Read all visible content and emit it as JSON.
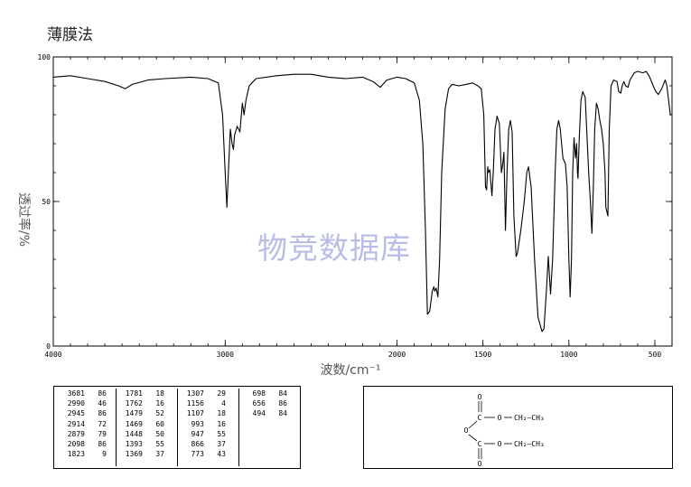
{
  "title": "薄膜法",
  "watermark": "物竞数据库",
  "chart_data": {
    "type": "line",
    "xlabel": "波数/cm⁻¹",
    "ylabel": "透过率/%",
    "xlim": [
      4000,
      400
    ],
    "ylim": [
      0,
      100
    ],
    "x_ticks": [
      4000,
      3000,
      2000,
      1500,
      1000,
      500
    ],
    "y_ticks": [
      0,
      50,
      100
    ],
    "series": [
      {
        "points": [
          [
            4000,
            93
          ],
          [
            3900,
            93.5
          ],
          [
            3800,
            92.5
          ],
          [
            3700,
            91.5
          ],
          [
            3620,
            90
          ],
          [
            3581,
            89
          ],
          [
            3540,
            90.5
          ],
          [
            3450,
            92
          ],
          [
            3350,
            92.5
          ],
          [
            3200,
            93
          ],
          [
            3100,
            92.5
          ],
          [
            3040,
            91
          ],
          [
            3015,
            80
          ],
          [
            3000,
            60
          ],
          [
            2990,
            48
          ],
          [
            2980,
            62
          ],
          [
            2970,
            75
          ],
          [
            2960,
            70
          ],
          [
            2952,
            68
          ],
          [
            2945,
            73
          ],
          [
            2930,
            76
          ],
          [
            2914,
            74
          ],
          [
            2900,
            84
          ],
          [
            2890,
            80
          ],
          [
            2879,
            85
          ],
          [
            2860,
            90
          ],
          [
            2820,
            92.5
          ],
          [
            2700,
            93.5
          ],
          [
            2600,
            94
          ],
          [
            2500,
            94
          ],
          [
            2400,
            93
          ],
          [
            2300,
            92.5
          ],
          [
            2200,
            93
          ],
          [
            2140,
            91.5
          ],
          [
            2098,
            89.5
          ],
          [
            2060,
            92
          ],
          [
            2000,
            93
          ],
          [
            1950,
            92.5
          ],
          [
            1900,
            91
          ],
          [
            1870,
            85
          ],
          [
            1850,
            70
          ],
          [
            1835,
            40
          ],
          [
            1823,
            11
          ],
          [
            1810,
            12
          ],
          [
            1795,
            19
          ],
          [
            1786,
            20.5
          ],
          [
            1781,
            19
          ],
          [
            1772,
            20
          ],
          [
            1762,
            17
          ],
          [
            1752,
            30
          ],
          [
            1740,
            60
          ],
          [
            1720,
            82
          ],
          [
            1700,
            89
          ],
          [
            1680,
            90.5
          ],
          [
            1640,
            90
          ],
          [
            1600,
            90.5
          ],
          [
            1560,
            91
          ],
          [
            1530,
            90
          ],
          [
            1510,
            89
          ],
          [
            1495,
            80
          ],
          [
            1485,
            55
          ],
          [
            1479,
            54
          ],
          [
            1472,
            62
          ],
          [
            1469,
            60
          ],
          [
            1460,
            61
          ],
          [
            1448,
            52
          ],
          [
            1440,
            60
          ],
          [
            1430,
            75
          ],
          [
            1418,
            79.5
          ],
          [
            1405,
            77
          ],
          [
            1393,
            60
          ],
          [
            1385,
            63
          ],
          [
            1378,
            67
          ],
          [
            1369,
            40
          ],
          [
            1360,
            60
          ],
          [
            1350,
            75
          ],
          [
            1340,
            78
          ],
          [
            1330,
            74
          ],
          [
            1320,
            45
          ],
          [
            1307,
            31
          ],
          [
            1300,
            32
          ],
          [
            1280,
            40
          ],
          [
            1260,
            50
          ],
          [
            1245,
            60
          ],
          [
            1235,
            62
          ],
          [
            1220,
            55
          ],
          [
            1200,
            30
          ],
          [
            1180,
            10
          ],
          [
            1156,
            5
          ],
          [
            1145,
            6
          ],
          [
            1130,
            20
          ],
          [
            1120,
            31
          ],
          [
            1107,
            18
          ],
          [
            1095,
            30
          ],
          [
            1080,
            60
          ],
          [
            1070,
            75
          ],
          [
            1060,
            78
          ],
          [
            1050,
            75
          ],
          [
            1035,
            65
          ],
          [
            1020,
            63
          ],
          [
            1010,
            55
          ],
          [
            1000,
            30
          ],
          [
            993,
            17
          ],
          [
            985,
            30
          ],
          [
            978,
            60
          ],
          [
            970,
            72
          ],
          [
            962,
            65
          ],
          [
            955,
            70
          ],
          [
            950,
            60
          ],
          [
            947,
            58
          ],
          [
            940,
            72
          ],
          [
            930,
            85
          ],
          [
            920,
            88
          ],
          [
            905,
            86
          ],
          [
            895,
            73
          ],
          [
            885,
            60
          ],
          [
            875,
            50
          ],
          [
            866,
            39
          ],
          [
            858,
            55
          ],
          [
            850,
            75
          ],
          [
            840,
            84
          ],
          [
            830,
            82
          ],
          [
            820,
            78
          ],
          [
            810,
            75
          ],
          [
            800,
            70
          ],
          [
            790,
            60
          ],
          [
            785,
            48
          ],
          [
            773,
            45
          ],
          [
            765,
            75
          ],
          [
            755,
            90
          ],
          [
            740,
            92
          ],
          [
            720,
            91.5
          ],
          [
            710,
            88
          ],
          [
            698,
            87.5
          ],
          [
            690,
            90
          ],
          [
            680,
            91.5
          ],
          [
            670,
            90
          ],
          [
            656,
            89.5
          ],
          [
            645,
            92
          ],
          [
            620,
            94.5
          ],
          [
            600,
            95
          ],
          [
            570,
            94.5
          ],
          [
            550,
            95
          ],
          [
            530,
            93
          ],
          [
            510,
            90
          ],
          [
            494,
            88
          ],
          [
            480,
            87
          ],
          [
            460,
            89
          ],
          [
            440,
            92
          ],
          [
            430,
            90
          ],
          [
            420,
            85
          ],
          [
            410,
            80
          ],
          [
            400,
            80
          ]
        ]
      }
    ]
  },
  "peak_table": {
    "columns": [
      [
        [
          "3681",
          "86"
        ],
        [
          "2990",
          "46"
        ],
        [
          "2945",
          "86"
        ],
        [
          "2914",
          "72"
        ],
        [
          "2879",
          "79"
        ],
        [
          "2098",
          "86"
        ],
        [
          "1823",
          "9"
        ]
      ],
      [
        [
          "1781",
          "18"
        ],
        [
          "1762",
          "16"
        ],
        [
          "1479",
          "52"
        ],
        [
          "1469",
          "60"
        ],
        [
          "1448",
          "50"
        ],
        [
          "1393",
          "55"
        ],
        [
          "1369",
          "37"
        ]
      ],
      [
        [
          "1307",
          "29"
        ],
        [
          "1156",
          "4"
        ],
        [
          "1107",
          "18"
        ],
        [
          "993",
          "16"
        ],
        [
          "947",
          "55"
        ],
        [
          "866",
          "37"
        ],
        [
          "773",
          "43"
        ]
      ],
      [
        [
          "698",
          "84"
        ],
        [
          "656",
          "86"
        ],
        [
          "494",
          "84"
        ]
      ]
    ]
  },
  "structure": {
    "carbonyl_o": "O",
    "carbon": "C",
    "bridge_o": "O",
    "ester_o": "O",
    "ethyl": "CH₂—CH₃"
  }
}
